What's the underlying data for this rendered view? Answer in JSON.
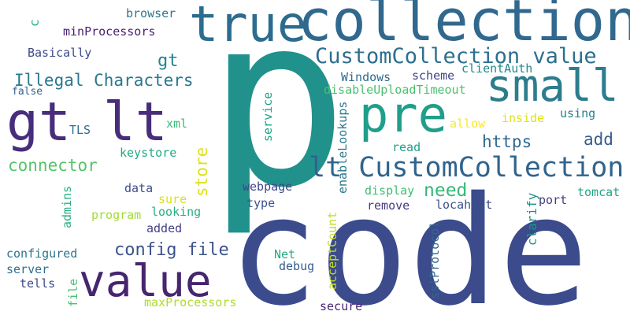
{
  "words": {
    "p": {
      "text": "p",
      "color": "#21918c"
    },
    "code": {
      "text": "code",
      "color": "#3b4b8c"
    },
    "collection": {
      "text": "collection",
      "color": "#31688e"
    },
    "true": {
      "text": "true",
      "color": "#2c6c8e"
    },
    "gtlt": {
      "text": "gt lt",
      "color": "#472d7b"
    },
    "value": {
      "text": "value",
      "color": "#46266f"
    },
    "pre": {
      "text": "pre",
      "color": "#1f9e89"
    },
    "small": {
      "text": "small",
      "color": "#2c7d8e"
    },
    "ccvalue": {
      "text": "CustomCollection value",
      "color": "#2d6f8e"
    },
    "ltcc": {
      "text": "lt CustomCollection",
      "color": "#30648e"
    },
    "illegal": {
      "text": "Illegal Characters",
      "color": "#29788e"
    },
    "connector": {
      "text": "connector",
      "color": "#54c568"
    },
    "configfile": {
      "text": "config file",
      "color": "#3b528b"
    },
    "gt": {
      "text": "gt",
      "color": "#26828e"
    },
    "https": {
      "text": "https",
      "color": "#30698e"
    },
    "add": {
      "text": "add",
      "color": "#365c8d"
    },
    "need": {
      "text": "need",
      "color": "#35b779"
    },
    "store": {
      "text": "store",
      "color": "#dde318"
    },
    "minproc": {
      "text": "minProcessors",
      "color": "#481f70"
    },
    "browser": {
      "text": "browser",
      "color": "#2a788e"
    },
    "basically": {
      "text": "Basically",
      "color": "#3e4a89"
    },
    "false": {
      "text": "false",
      "color": "#33638d"
    },
    "tls": {
      "text": "TLS",
      "color": "#2e6e8e"
    },
    "xml": {
      "text": "xml",
      "color": "#38b977"
    },
    "keystore": {
      "text": "keystore",
      "color": "#23a983"
    },
    "data": {
      "text": "data",
      "color": "#3d4e8a"
    },
    "sure": {
      "text": "sure",
      "color": "#d8e219"
    },
    "program": {
      "text": "program",
      "color": "#a2da37"
    },
    "looking": {
      "text": "looking",
      "color": "#29af7f"
    },
    "added": {
      "text": "added",
      "color": "#433e85"
    },
    "configured": {
      "text": "configured",
      "color": "#2b758e"
    },
    "server": {
      "text": "server",
      "color": "#2e6f8e"
    },
    "tells": {
      "text": "tells",
      "color": "#3f4889"
    },
    "maxproc": {
      "text": "maxProcessors",
      "color": "#addc30"
    },
    "webpage": {
      "text": "webpage",
      "color": "#3f4788"
    },
    "type": {
      "text": "type",
      "color": "#3b528b"
    },
    "net": {
      "text": "Net",
      "color": "#25ab82"
    },
    "debug": {
      "text": "debug",
      "color": "#365d8d"
    },
    "secure": {
      "text": "secure",
      "color": "#482576"
    },
    "windows": {
      "text": "Windows",
      "color": "#2f6b8e"
    },
    "scheme": {
      "text": "scheme",
      "color": "#424186"
    },
    "clientauth": {
      "text": "clientAuth",
      "color": "#23898e"
    },
    "disableupl": {
      "text": "disableUploadTimeout",
      "color": "#4ac16d"
    },
    "allow": {
      "text": "allow",
      "color": "#fde725"
    },
    "inside": {
      "text": "inside",
      "color": "#dde318"
    },
    "using": {
      "text": "using",
      "color": "#26818e"
    },
    "read": {
      "text": "read",
      "color": "#1fa088"
    },
    "display": {
      "text": "display",
      "color": "#40bd72"
    },
    "remove": {
      "text": "remove",
      "color": "#443983"
    },
    "locahost": {
      "text": "locahost",
      "color": "#3b528b"
    },
    "port": {
      "text": "port",
      "color": "#433e85"
    },
    "tomcat": {
      "text": "tomcat",
      "color": "#21a585"
    },
    "c": {
      "text": "c",
      "color": "#2db27d"
    },
    "admins": {
      "text": "admins",
      "color": "#2ab07f"
    },
    "file": {
      "text": "file",
      "color": "#48c16e"
    },
    "service": {
      "text": "service",
      "color": "#1fa187"
    },
    "enablelook": {
      "text": "enableLookups",
      "color": "#2a788e"
    },
    "acceptcount": {
      "text": "acceptCount",
      "color": "#c2df23"
    },
    "sslprotocol": {
      "text": "sslProtocol",
      "color": "#31688e"
    },
    "clarify": {
      "text": "clarify",
      "color": "#21918c"
    }
  }
}
